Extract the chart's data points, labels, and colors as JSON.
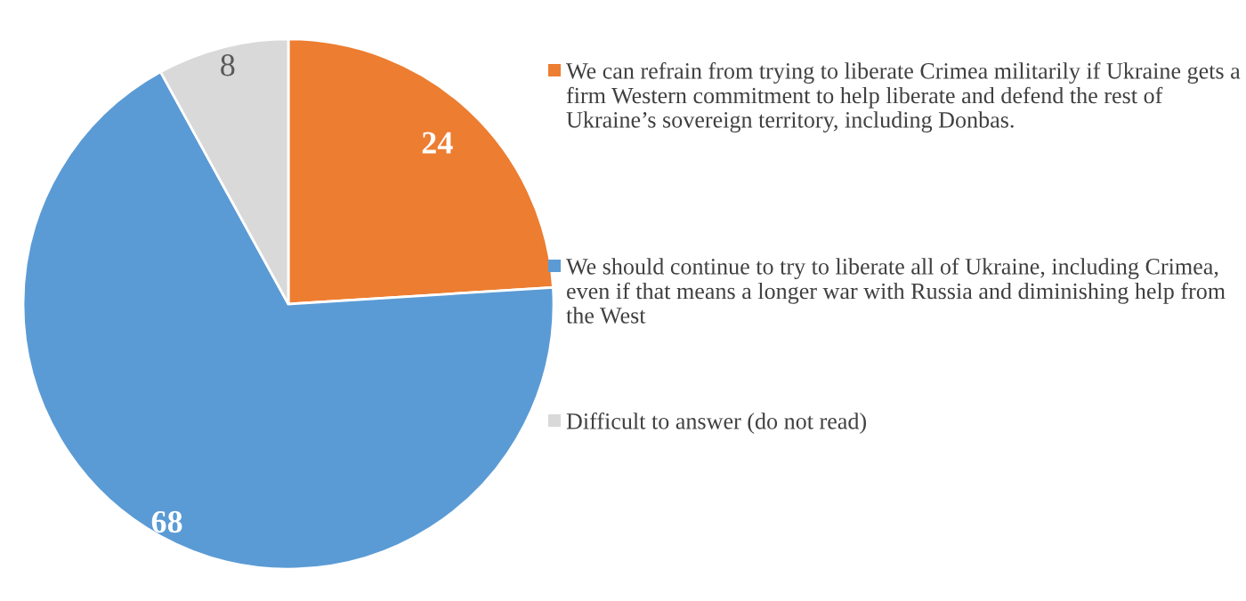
{
  "chart_data": {
    "type": "pie",
    "categories": [
      "We can refrain from trying to liberate Crimea militarily if Ukraine gets a firm Western commitment to help liberate and defend the rest of Ukraine’s sovereign territory, including Donbas.",
      "We should continue to try to liberate all of Ukraine, including Crimea, even if that means a longer war with Russia and diminishing help from the West",
      "Difficult to answer (do not read)"
    ],
    "values": [
      24,
      68,
      8
    ],
    "colors": [
      "#ed7d31",
      "#5b9bd5",
      "#d9d9d9"
    ],
    "data_labels": true,
    "legend": "right"
  }
}
